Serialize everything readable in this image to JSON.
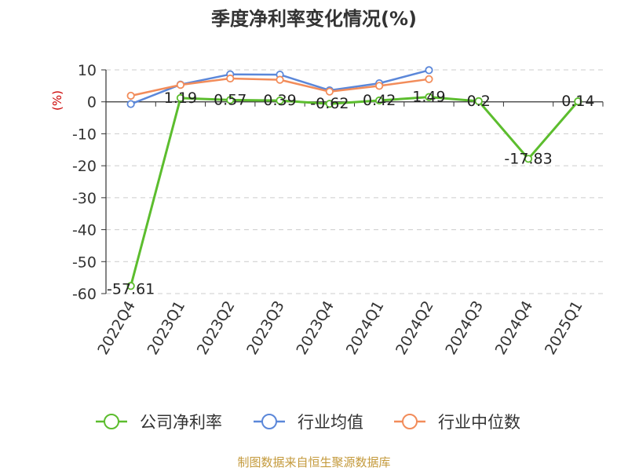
{
  "chart_data": {
    "type": "line",
    "title": "季度净利率变化情况(%)",
    "ylabel": "(%)",
    "xlabel": "",
    "categories": [
      "2022Q4",
      "2023Q1",
      "2023Q2",
      "2023Q3",
      "2023Q4",
      "2024Q1",
      "2024Q2",
      "2024Q3",
      "2024Q4",
      "2025Q1"
    ],
    "ylim": [
      -60,
      10
    ],
    "yticks": [
      10,
      0,
      -10,
      -20,
      -30,
      -40,
      -50,
      -60
    ],
    "grid": true,
    "legend_position": "bottom",
    "series": [
      {
        "name": "公司净利率",
        "color": "#5cbd2e",
        "values": [
          -57.61,
          1.19,
          0.57,
          0.39,
          -0.62,
          0.42,
          1.49,
          0.2,
          -17.83,
          0.14
        ],
        "labels": [
          "-57.61",
          "1.19",
          "0.57",
          "0.39",
          "-0.62",
          "0.42",
          "1.49",
          "0.2",
          "-17.83",
          "0.14"
        ]
      },
      {
        "name": "行业均值",
        "color": "#5b87d9",
        "values": [
          -0.7,
          5.4,
          8.6,
          8.5,
          3.6,
          5.8,
          9.9,
          null,
          null,
          null
        ]
      },
      {
        "name": "行业中位数",
        "color": "#f28c5a",
        "values": [
          1.9,
          5.3,
          7.3,
          6.9,
          3.2,
          5.0,
          7.1,
          null,
          null,
          null
        ]
      }
    ]
  },
  "footer": {
    "source": "制图数据来自恒生聚源数据库"
  }
}
